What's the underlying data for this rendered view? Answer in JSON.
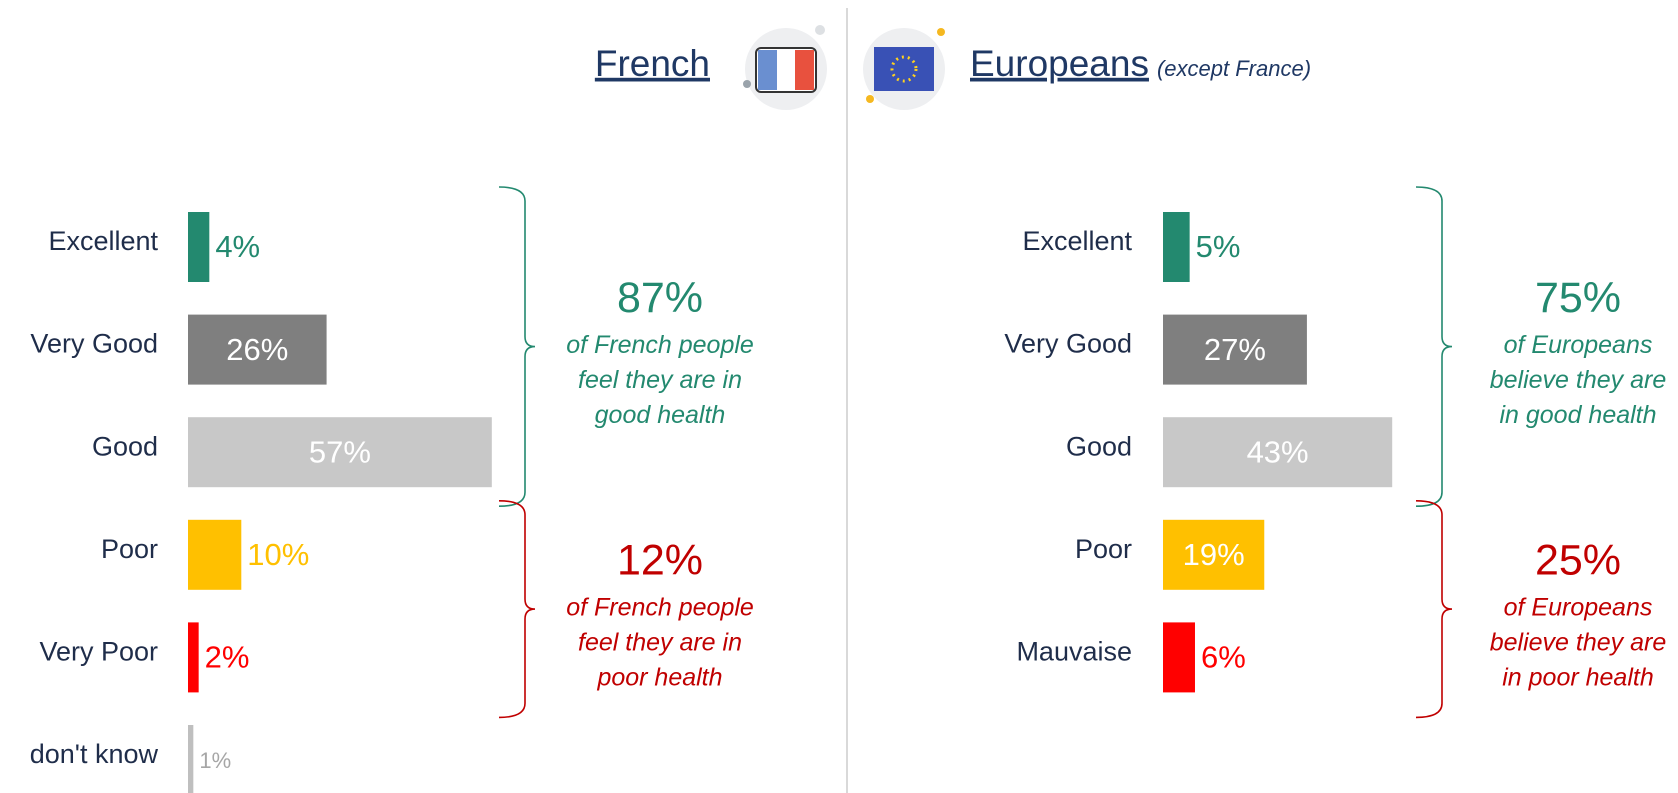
{
  "chart_data": [
    {
      "type": "bar",
      "title": "French",
      "categories": [
        "Excellent",
        "Very Good",
        "Good",
        "Poor",
        "Very Poor",
        "don't know"
      ],
      "values": [
        4,
        26,
        57,
        10,
        2,
        1
      ],
      "value_labels": [
        "4%",
        "26%",
        "57%",
        "10%",
        "2%",
        "1%"
      ],
      "colors": [
        "#23896f",
        "#7f7f7f",
        "#c8c8c8",
        "#ffc000",
        "#ff0000",
        "#bfbfbf"
      ],
      "annotations": [
        {
          "label": "87%",
          "lines": [
            "of French people",
            "feel they are in",
            "good health"
          ],
          "color": "#23896f"
        },
        {
          "label": "12%",
          "lines": [
            "of French people",
            "feel they are in",
            "poor health"
          ],
          "color": "#c00000"
        }
      ]
    },
    {
      "type": "bar",
      "title": "Europeans",
      "subtitle": "(except France)",
      "categories": [
        "Excellent",
        "Very Good",
        "Good",
        "Poor",
        "Mauvaise"
      ],
      "values": [
        5,
        27,
        43,
        19,
        6
      ],
      "value_labels": [
        "5%",
        "27%",
        "43%",
        "19%",
        "6%"
      ],
      "colors": [
        "#23896f",
        "#7f7f7f",
        "#c8c8c8",
        "#ffc000",
        "#ff0000"
      ],
      "annotations": [
        {
          "label": "75%",
          "lines": [
            "of Europeans",
            "believe they are",
            "in good health"
          ],
          "color": "#23896f"
        },
        {
          "label": "25%",
          "lines": [
            "of Europeans",
            "believe they are",
            "in poor health"
          ],
          "color": "#c00000"
        }
      ]
    }
  ]
}
